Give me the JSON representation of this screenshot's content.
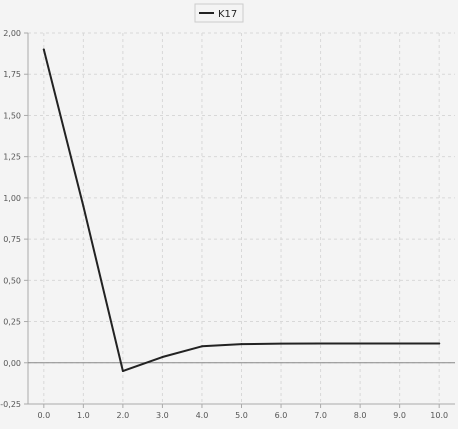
{
  "chart_data": {
    "type": "line",
    "series": [
      {
        "name": "K17",
        "color": "#222222",
        "x": [
          0.0,
          1.0,
          2.0,
          3.0,
          4.0,
          5.0,
          6.0,
          7.0,
          8.0,
          9.0,
          10.0
        ],
        "y": [
          1.9,
          0.95,
          -0.05,
          0.035,
          0.1,
          0.113,
          0.116,
          0.117,
          0.117,
          0.117,
          0.117
        ]
      }
    ],
    "xlim": [
      -0.4,
      10.4
    ],
    "ylim": [
      -0.25,
      2.0
    ],
    "x_ticks": [
      0.0,
      1.0,
      2.0,
      3.0,
      4.0,
      5.0,
      6.0,
      7.0,
      8.0,
      9.0,
      10.0
    ],
    "x_tick_labels": [
      "0.0",
      "1.0",
      "2.0",
      "3.0",
      "4.0",
      "5.0",
      "6.0",
      "7.0",
      "8.0",
      "9.0",
      "10.0"
    ],
    "y_ticks": [
      -0.25,
      0.0,
      0.25,
      0.5,
      0.75,
      1.0,
      1.25,
      1.5,
      1.75,
      2.0
    ],
    "y_tick_labels": [
      "-0,25",
      "0,00",
      "0,25",
      "0,50",
      "0,75",
      "1,00",
      "1,25",
      "1,50",
      "1,75",
      "2,00"
    ],
    "grid": true,
    "zero_line": true,
    "legend_position": "top-center",
    "colors": {
      "background": "#f4f4f4",
      "plot_background": "#f4f4f4",
      "grid": "#d8d8d8",
      "axis": "#aaaaaa",
      "zero_line": "#888888"
    }
  }
}
